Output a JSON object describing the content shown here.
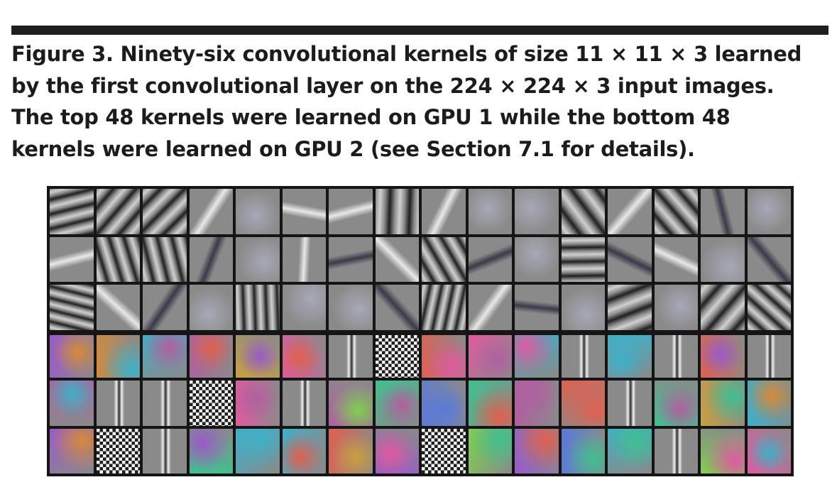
{
  "figure": {
    "caption_lines": [
      "Figure 3. Ninety-six convolutional kernels of size 11 × 11 × 3 learned",
      "by the first convolutional layer on the 224 × 224 × 3 input images.",
      "The top 48 kernels were learned on GPU 1 while the bottom 48",
      "kernels were learned on GPU 2 (see Section 7.1 for details)."
    ]
  },
  "kernels": {
    "columns": 16,
    "gpu1_count": 48,
    "gpu2_count": 48,
    "colors": {
      "neutral_gray": "#8a8a8a",
      "grid_border": "#151515"
    }
  }
}
